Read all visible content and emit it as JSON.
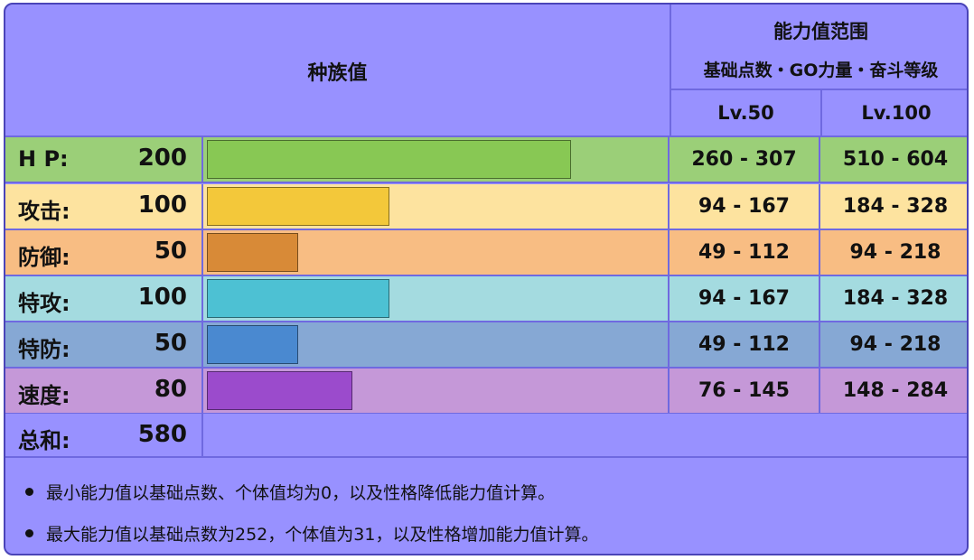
{
  "header": {
    "base_stats_title": "种族值",
    "range_title": "能力值范围",
    "range_subtitle": "基础点数・GO力量・奋斗等级",
    "lv50": "Lv.50",
    "lv100": "Lv.100"
  },
  "stats": [
    {
      "label": "H P:",
      "value": 200,
      "range50": "260 - 307",
      "range100": "510 - 604",
      "bg": "#9bcf78",
      "bar": "#88c854"
    },
    {
      "label": "攻击:",
      "value": 100,
      "range50": "94 - 167",
      "range100": "184 - 328",
      "bg": "#fde39f",
      "bar": "#f3c83a"
    },
    {
      "label": "防御:",
      "value": 50,
      "range50": "49 - 112",
      "range100": "94 - 218",
      "bg": "#f8bd83",
      "bar": "#d88a37"
    },
    {
      "label": "特攻:",
      "value": 100,
      "range50": "94 - 167",
      "range100": "184 - 328",
      "bg": "#a4dbe0",
      "bar": "#4dc1d3"
    },
    {
      "label": "特防:",
      "value": 50,
      "range50": "49 - 112",
      "range100": "94 - 218",
      "bg": "#86a8d4",
      "bar": "#4a89d0"
    },
    {
      "label": "速度:",
      "value": 80,
      "range50": "76 - 145",
      "range100": "148 - 284",
      "bg": "#c598d8",
      "bar": "#9b4bcc"
    }
  ],
  "total": {
    "label": "总和:",
    "value": 580
  },
  "notes": [
    "最小能力值以基础点数、个体值均为0，以及性格降低能力值计算。",
    "最大能力值以基础点数为252，个体值为31，以及性格增加能力值计算。"
  ],
  "bar_max": 255,
  "colors": {
    "frame": "#4a44b8",
    "background": "#9891ff",
    "divider": "#6f69e0"
  }
}
